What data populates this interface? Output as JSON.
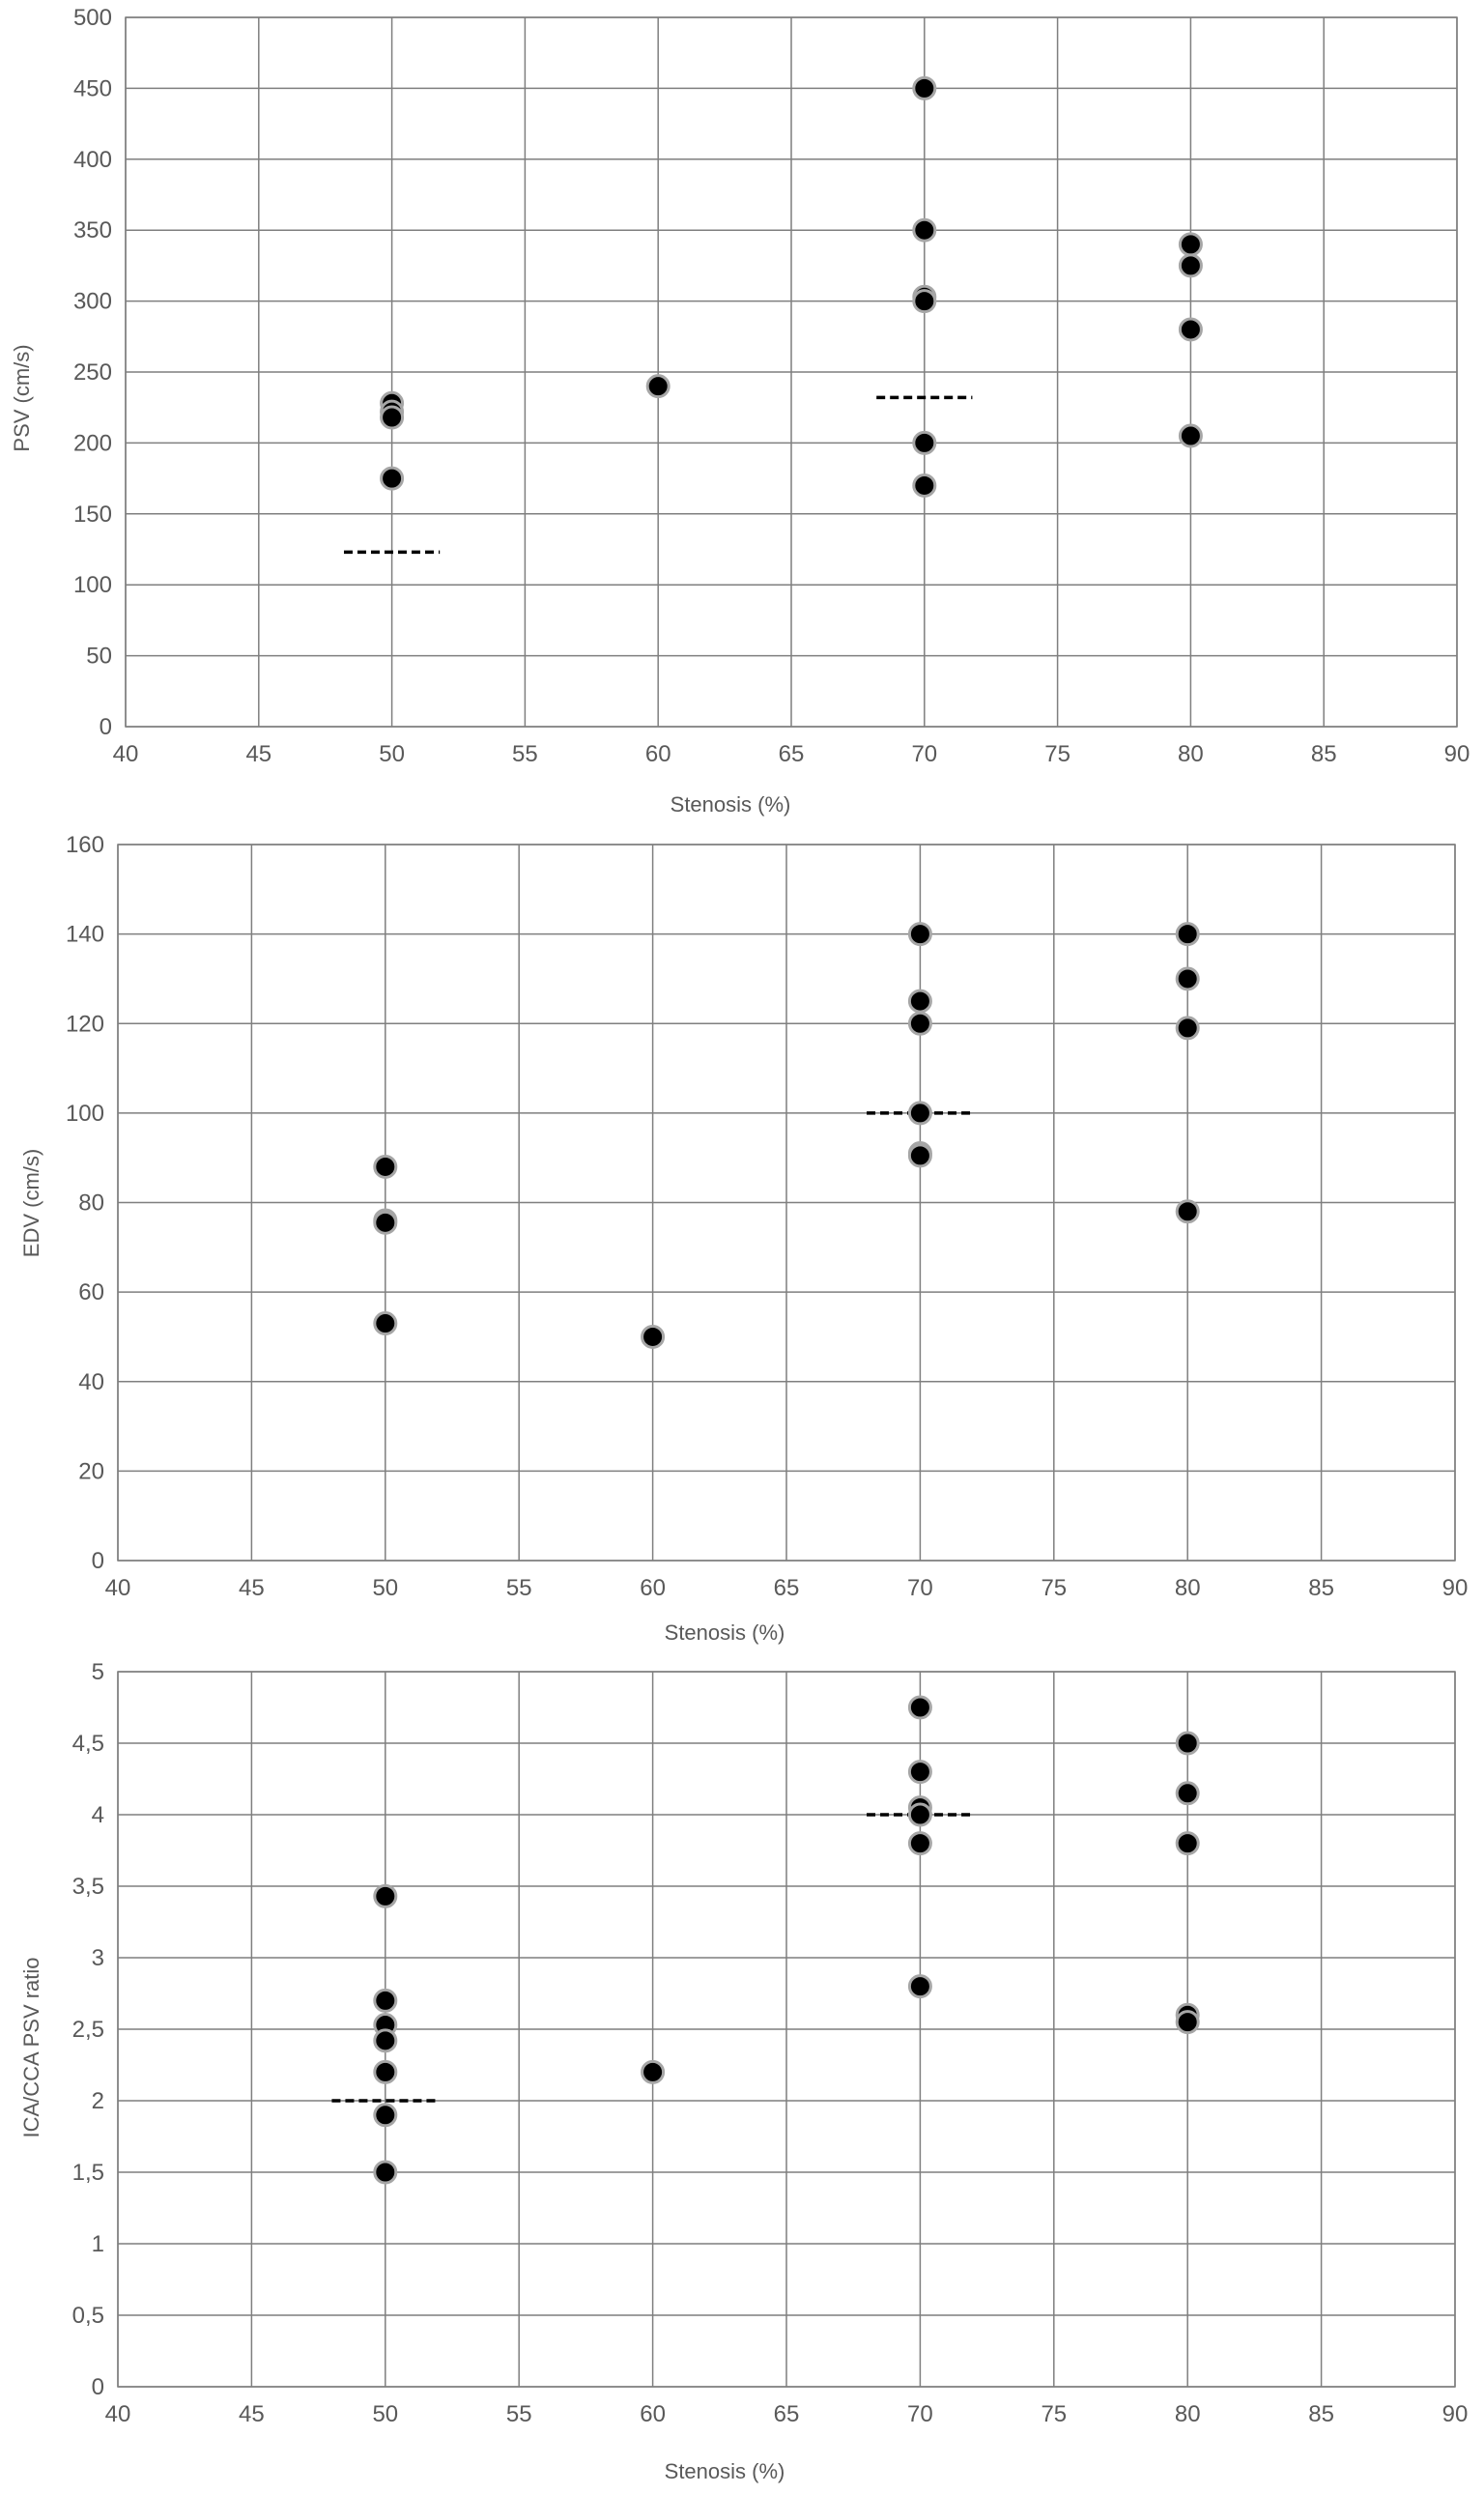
{
  "colors": {
    "background": "#ffffff",
    "gridline": "#7f7f7f",
    "plot_border": "#7f7f7f",
    "text": "#595959",
    "marker_fill": "#000000",
    "marker_outline": "#a6a6a6",
    "threshold_line": "#000000"
  },
  "chart_data": [
    {
      "type": "scatter",
      "xlabel": "Stenosis (%)",
      "ylabel": "PSV (cm/s)",
      "xlim": [
        40,
        90
      ],
      "ylim": [
        0,
        500
      ],
      "xticks": [
        40,
        45,
        50,
        55,
        60,
        65,
        70,
        75,
        80,
        85,
        90
      ],
      "xtick_labels": [
        "40",
        "45",
        "50",
        "55",
        "60",
        "65",
        "70",
        "75",
        "80",
        "85",
        "90"
      ],
      "yticks": [
        0,
        50,
        100,
        150,
        200,
        250,
        300,
        350,
        400,
        450,
        500
      ],
      "ytick_labels": [
        "0",
        "50",
        "100",
        "150",
        "200",
        "250",
        "300",
        "350",
        "400",
        "450",
        "500"
      ],
      "grid": true,
      "points": [
        {
          "x": 50,
          "y": 228
        },
        {
          "x": 50,
          "y": 222
        },
        {
          "x": 50,
          "y": 218
        },
        {
          "x": 50,
          "y": 175
        },
        {
          "x": 60,
          "y": 240
        },
        {
          "x": 70,
          "y": 450
        },
        {
          "x": 70,
          "y": 350
        },
        {
          "x": 70,
          "y": 303
        },
        {
          "x": 70,
          "y": 300
        },
        {
          "x": 70,
          "y": 200
        },
        {
          "x": 70,
          "y": 170
        },
        {
          "x": 80,
          "y": 340
        },
        {
          "x": 80,
          "y": 325
        },
        {
          "x": 80,
          "y": 280
        },
        {
          "x": 80,
          "y": 205
        }
      ],
      "thresholds": [
        {
          "x_from": 48.2,
          "x_to": 51.8,
          "y": 123
        },
        {
          "x_from": 68.2,
          "x_to": 71.8,
          "y": 232
        }
      ]
    },
    {
      "type": "scatter",
      "xlabel": "Stenosis (%)",
      "ylabel": "EDV (cm/s)",
      "xlim": [
        40,
        90
      ],
      "ylim": [
        0,
        160
      ],
      "xticks": [
        40,
        45,
        50,
        55,
        60,
        65,
        70,
        75,
        80,
        85,
        90
      ],
      "xtick_labels": [
        "40",
        "45",
        "50",
        "55",
        "60",
        "65",
        "70",
        "75",
        "80",
        "85",
        "90"
      ],
      "yticks": [
        0,
        20,
        40,
        60,
        80,
        100,
        120,
        140,
        160
      ],
      "ytick_labels": [
        "0",
        "20",
        "40",
        "60",
        "80",
        "100",
        "120",
        "140",
        "160"
      ],
      "grid": true,
      "points": [
        {
          "x": 50,
          "y": 88
        },
        {
          "x": 50,
          "y": 76
        },
        {
          "x": 50,
          "y": 75.5
        },
        {
          "x": 50,
          "y": 53
        },
        {
          "x": 60,
          "y": 50
        },
        {
          "x": 70,
          "y": 140
        },
        {
          "x": 70,
          "y": 125
        },
        {
          "x": 70,
          "y": 120
        },
        {
          "x": 70,
          "y": 100
        },
        {
          "x": 70,
          "y": 91
        },
        {
          "x": 70,
          "y": 90.5
        },
        {
          "x": 80,
          "y": 140
        },
        {
          "x": 80,
          "y": 130
        },
        {
          "x": 80,
          "y": 119
        },
        {
          "x": 80,
          "y": 78
        }
      ],
      "thresholds": [
        {
          "x_from": 68,
          "x_to": 72,
          "y": 100
        }
      ]
    },
    {
      "type": "scatter",
      "xlabel": "Stenosis (%)",
      "ylabel": "ICA/CCA PSV ratio",
      "xlim": [
        40,
        90
      ],
      "ylim": [
        0,
        5
      ],
      "xticks": [
        40,
        45,
        50,
        55,
        60,
        65,
        70,
        75,
        80,
        85,
        90
      ],
      "xtick_labels": [
        "40",
        "45",
        "50",
        "55",
        "60",
        "65",
        "70",
        "75",
        "80",
        "85",
        "90"
      ],
      "yticks": [
        0,
        0.5,
        1,
        1.5,
        2,
        2.5,
        3,
        3.5,
        4,
        4.5,
        5
      ],
      "ytick_labels": [
        "0",
        "0,5",
        "1",
        "1,5",
        "2",
        "2,5",
        "3",
        "3,5",
        "4",
        "4,5",
        "5"
      ],
      "grid": true,
      "points": [
        {
          "x": 50,
          "y": 3.43
        },
        {
          "x": 50,
          "y": 2.7
        },
        {
          "x": 50,
          "y": 2.53
        },
        {
          "x": 50,
          "y": 2.42
        },
        {
          "x": 50,
          "y": 2.2
        },
        {
          "x": 50,
          "y": 1.9
        },
        {
          "x": 50,
          "y": 1.5
        },
        {
          "x": 60,
          "y": 2.2
        },
        {
          "x": 70,
          "y": 4.75
        },
        {
          "x": 70,
          "y": 4.3
        },
        {
          "x": 70,
          "y": 4.05
        },
        {
          "x": 70,
          "y": 4.0
        },
        {
          "x": 70,
          "y": 3.8
        },
        {
          "x": 70,
          "y": 2.8
        },
        {
          "x": 80,
          "y": 4.5
        },
        {
          "x": 80,
          "y": 4.15
        },
        {
          "x": 80,
          "y": 3.8
        },
        {
          "x": 80,
          "y": 2.6
        },
        {
          "x": 80,
          "y": 2.55
        }
      ],
      "thresholds": [
        {
          "x_from": 48,
          "x_to": 52,
          "y": 2.0
        },
        {
          "x_from": 68,
          "x_to": 72,
          "y": 4.0
        }
      ]
    }
  ]
}
